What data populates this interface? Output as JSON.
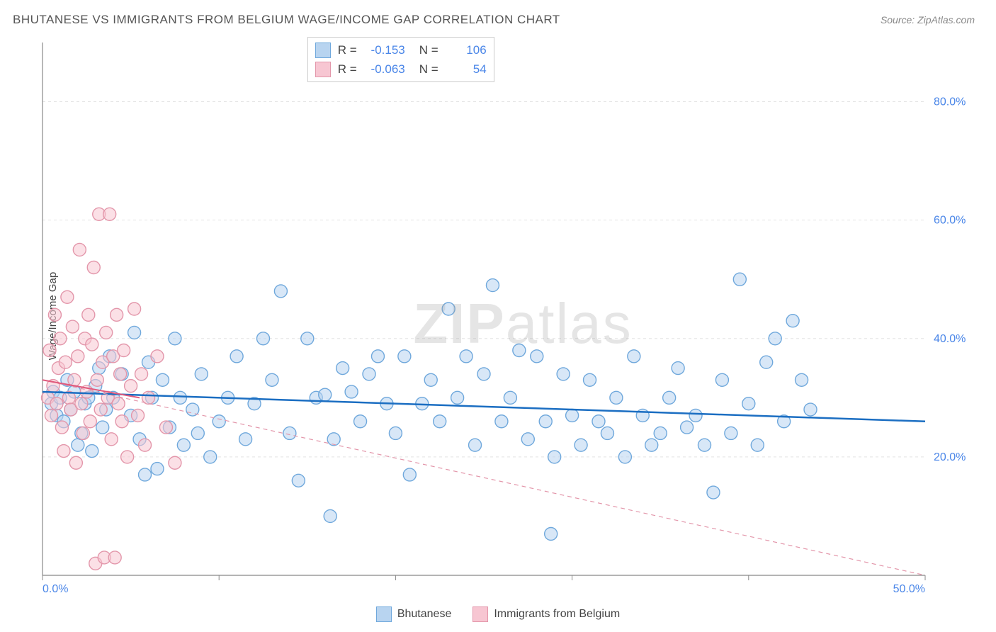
{
  "title": "BHUTANESE VS IMMIGRANTS FROM BELGIUM WAGE/INCOME GAP CORRELATION CHART",
  "source_label": "Source: ZipAtlas.com",
  "ylabel": "Wage/Income Gap",
  "watermark_bold": "ZIP",
  "watermark_rest": "atlas",
  "chart": {
    "type": "scatter",
    "xlim": [
      0,
      50
    ],
    "ylim": [
      0,
      90
    ],
    "xticks": [
      0,
      10,
      20,
      30,
      40,
      50
    ],
    "yticks": [
      20,
      40,
      60,
      80
    ],
    "xtick_labels": [
      "0.0%",
      "",
      "",
      "",
      "",
      "50.0%"
    ],
    "ytick_labels": [
      "20.0%",
      "40.0%",
      "60.0%",
      "80.0%"
    ],
    "grid_color": "#e3e3e3",
    "axis_color": "#888888",
    "tick_label_color": "#4a86e8",
    "tick_label_fontsize": 16,
    "background_color": "#ffffff",
    "marker_radius": 9,
    "marker_stroke_width": 1.4,
    "series": [
      {
        "name": "Bhutanese",
        "fill": "#b8d4f0",
        "stroke": "#6fa8dc",
        "fill_opacity": 0.55,
        "R": "-0.153",
        "N": "106",
        "trend": {
          "y_at_x0": 31,
          "y_at_x50": 26,
          "stroke": "#1b6ec2",
          "width": 2.5,
          "dash": ""
        },
        "points": [
          [
            0.5,
            29
          ],
          [
            0.6,
            31
          ],
          [
            0.8,
            27
          ],
          [
            1.0,
            30
          ],
          [
            1.2,
            26
          ],
          [
            1.4,
            33
          ],
          [
            1.6,
            28
          ],
          [
            1.8,
            31
          ],
          [
            2.0,
            22
          ],
          [
            2.2,
            24
          ],
          [
            2.4,
            29
          ],
          [
            2.6,
            30
          ],
          [
            2.8,
            21
          ],
          [
            3.0,
            32
          ],
          [
            3.2,
            35
          ],
          [
            3.4,
            25
          ],
          [
            3.6,
            28
          ],
          [
            3.8,
            37
          ],
          [
            4.0,
            30
          ],
          [
            4.5,
            34
          ],
          [
            5.0,
            27
          ],
          [
            5.2,
            41
          ],
          [
            5.5,
            23
          ],
          [
            5.8,
            17
          ],
          [
            6.0,
            36
          ],
          [
            6.2,
            30
          ],
          [
            6.5,
            18
          ],
          [
            6.8,
            33
          ],
          [
            7.2,
            25
          ],
          [
            7.5,
            40
          ],
          [
            7.8,
            30
          ],
          [
            8.0,
            22
          ],
          [
            8.5,
            28
          ],
          [
            8.8,
            24
          ],
          [
            9.0,
            34
          ],
          [
            9.5,
            20
          ],
          [
            10.0,
            26
          ],
          [
            10.5,
            30
          ],
          [
            11.0,
            37
          ],
          [
            11.5,
            23
          ],
          [
            12.0,
            29
          ],
          [
            12.5,
            40
          ],
          [
            13.0,
            33
          ],
          [
            13.5,
            48
          ],
          [
            14.0,
            24
          ],
          [
            14.5,
            16
          ],
          [
            15.0,
            40
          ],
          [
            15.5,
            30
          ],
          [
            16.0,
            30.5
          ],
          [
            16.3,
            10
          ],
          [
            16.5,
            23
          ],
          [
            17.0,
            35
          ],
          [
            17.5,
            31
          ],
          [
            18.0,
            26
          ],
          [
            18.5,
            34
          ],
          [
            19.0,
            37
          ],
          [
            19.5,
            29
          ],
          [
            20.0,
            24
          ],
          [
            20.5,
            37
          ],
          [
            20.8,
            17
          ],
          [
            21.5,
            29
          ],
          [
            22.0,
            33
          ],
          [
            22.5,
            26
          ],
          [
            23.0,
            45
          ],
          [
            23.5,
            30
          ],
          [
            24.0,
            37
          ],
          [
            24.5,
            22
          ],
          [
            25.0,
            34
          ],
          [
            25.5,
            49
          ],
          [
            26.0,
            26
          ],
          [
            26.5,
            30
          ],
          [
            27.0,
            38
          ],
          [
            27.5,
            23
          ],
          [
            28.0,
            37
          ],
          [
            28.5,
            26
          ],
          [
            28.8,
            7
          ],
          [
            29.0,
            20
          ],
          [
            29.5,
            34
          ],
          [
            30.0,
            27
          ],
          [
            30.5,
            22
          ],
          [
            31.0,
            33
          ],
          [
            31.5,
            26
          ],
          [
            32.0,
            24
          ],
          [
            32.5,
            30
          ],
          [
            33.0,
            20
          ],
          [
            33.5,
            37
          ],
          [
            34.0,
            27
          ],
          [
            34.5,
            22
          ],
          [
            35.0,
            24
          ],
          [
            35.5,
            30
          ],
          [
            36.0,
            35
          ],
          [
            36.5,
            25
          ],
          [
            37.0,
            27
          ],
          [
            37.5,
            22
          ],
          [
            38.0,
            14
          ],
          [
            38.5,
            33
          ],
          [
            39.0,
            24
          ],
          [
            39.5,
            50
          ],
          [
            40.0,
            29
          ],
          [
            40.5,
            22
          ],
          [
            41.0,
            36
          ],
          [
            41.5,
            40
          ],
          [
            42.0,
            26
          ],
          [
            42.5,
            43
          ],
          [
            43.0,
            33
          ],
          [
            43.5,
            28
          ]
        ]
      },
      {
        "name": "Immigrants from Belgium",
        "fill": "#f7c6d2",
        "stroke": "#e396aa",
        "fill_opacity": 0.55,
        "R": "-0.063",
        "N": "54",
        "trend": {
          "y_at_x0": 33,
          "y_at_x50": 0,
          "stroke": "#e396aa",
          "width": 1.2,
          "dash": "6,5"
        },
        "solid_trend": {
          "x_to": 5.5,
          "y_at_x0": 33,
          "y_at_end": 30,
          "stroke": "#e05a7d",
          "width": 2
        },
        "points": [
          [
            0.3,
            30
          ],
          [
            0.4,
            38
          ],
          [
            0.5,
            27
          ],
          [
            0.6,
            32
          ],
          [
            0.7,
            44
          ],
          [
            0.8,
            29
          ],
          [
            0.9,
            35
          ],
          [
            1.0,
            40
          ],
          [
            1.1,
            25
          ],
          [
            1.2,
            21
          ],
          [
            1.3,
            36
          ],
          [
            1.4,
            47
          ],
          [
            1.5,
            30
          ],
          [
            1.6,
            28
          ],
          [
            1.7,
            42
          ],
          [
            1.8,
            33
          ],
          [
            1.9,
            19
          ],
          [
            2.0,
            37
          ],
          [
            2.1,
            55
          ],
          [
            2.2,
            29
          ],
          [
            2.3,
            24
          ],
          [
            2.4,
            40
          ],
          [
            2.5,
            31
          ],
          [
            2.6,
            44
          ],
          [
            2.7,
            26
          ],
          [
            2.8,
            39
          ],
          [
            2.9,
            52
          ],
          [
            3.0,
            2
          ],
          [
            3.1,
            33
          ],
          [
            3.2,
            61
          ],
          [
            3.3,
            28
          ],
          [
            3.4,
            36
          ],
          [
            3.5,
            3
          ],
          [
            3.6,
            41
          ],
          [
            3.7,
            30
          ],
          [
            3.8,
            61
          ],
          [
            3.9,
            23
          ],
          [
            4.0,
            37
          ],
          [
            4.1,
            3
          ],
          [
            4.2,
            44
          ],
          [
            4.3,
            29
          ],
          [
            4.4,
            34
          ],
          [
            4.5,
            26
          ],
          [
            4.6,
            38
          ],
          [
            4.8,
            20
          ],
          [
            5.0,
            32
          ],
          [
            5.2,
            45
          ],
          [
            5.4,
            27
          ],
          [
            5.6,
            34
          ],
          [
            5.8,
            22
          ],
          [
            6.0,
            30
          ],
          [
            6.5,
            37
          ],
          [
            7.0,
            25
          ],
          [
            7.5,
            19
          ]
        ]
      }
    ]
  },
  "top_legend": {
    "R_label": "R =",
    "N_label": "N ="
  },
  "bottom_legend": {
    "items": [
      "Bhutanese",
      "Immigrants from Belgium"
    ]
  }
}
